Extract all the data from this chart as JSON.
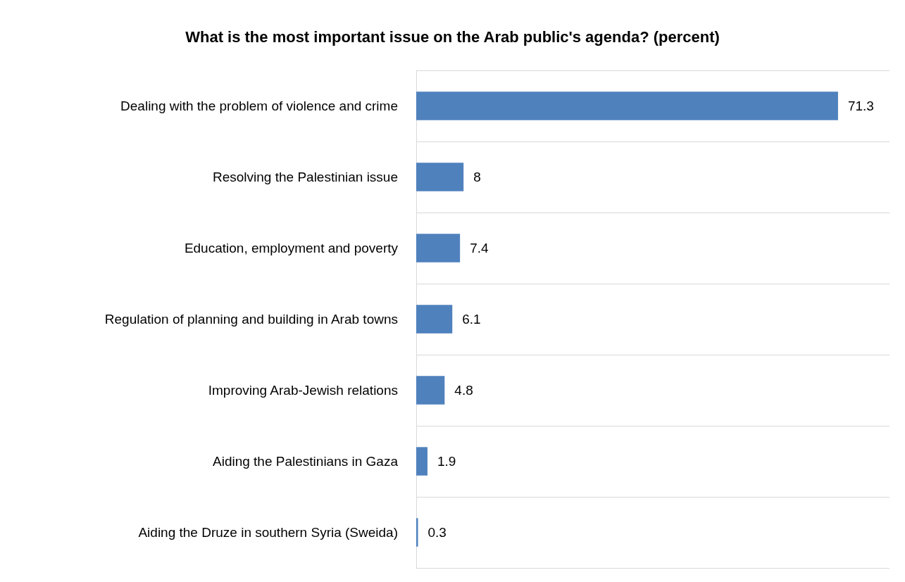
{
  "chart_data": {
    "type": "bar",
    "orientation": "horizontal",
    "title": "What is the most important issue on the Arab public's agenda? (percent)",
    "categories": [
      "Dealing with the problem of violence and crime",
      "Resolving the Palestinian issue",
      "Education, employment and poverty",
      "Regulation of planning and building in Arab towns",
      "Improving Arab-Jewish relations",
      "Aiding the Palestinians in Gaza",
      "Aiding the Druze in southern Syria (Sweida)"
    ],
    "values": [
      71.3,
      8,
      7.4,
      6.1,
      4.8,
      1.9,
      0.3
    ],
    "color": "#4f81bd",
    "data_labels": true,
    "grid": "y"
  }
}
